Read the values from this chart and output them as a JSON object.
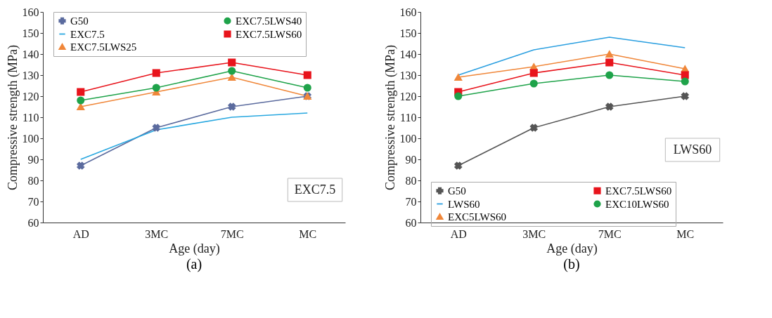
{
  "chart_data": [
    {
      "type": "line",
      "xlabel": "Age (day)",
      "ylabel": "Compressive strength (MPa)",
      "categories": [
        "AD",
        "3MC",
        "7MC",
        "MC"
      ],
      "ylim": [
        60,
        160
      ],
      "yticks": [
        60,
        70,
        80,
        90,
        100,
        110,
        120,
        130,
        140,
        150,
        160
      ],
      "grid": false,
      "legend": "top",
      "annotations": [
        "EXC7.5",
        "(a)"
      ],
      "series": [
        {
          "name": "G50",
          "color": "#5b6b9e",
          "marker": "cross",
          "values": [
            87,
            105,
            115,
            120
          ]
        },
        {
          "name": "EXC7.5",
          "color": "#29a8e0",
          "marker": "none",
          "values": [
            90,
            104,
            110,
            112
          ]
        },
        {
          "name": "EXC7.5LWS25",
          "color": "#f0873a",
          "marker": "triangle",
          "values": [
            115,
            122,
            129,
            120
          ]
        },
        {
          "name": "EXC7.5LWS40",
          "color": "#1fa34a",
          "marker": "circle",
          "values": [
            118,
            124,
            132,
            124
          ]
        },
        {
          "name": "EXC7.5LWS60",
          "color": "#e8141c",
          "marker": "square",
          "values": [
            122,
            131,
            136,
            130
          ]
        }
      ]
    },
    {
      "type": "line",
      "xlabel": "Age (day)",
      "ylabel": "Compressive strength (MPa)",
      "categories": [
        "AD",
        "3MC",
        "7MC",
        "MC"
      ],
      "ylim": [
        60,
        160
      ],
      "yticks": [
        60,
        70,
        80,
        90,
        100,
        110,
        120,
        130,
        140,
        150,
        160
      ],
      "grid": false,
      "legend": "bottom",
      "annotations": [
        "LWS60",
        "(b)"
      ],
      "series": [
        {
          "name": "G50",
          "color": "#555555",
          "marker": "cross",
          "values": [
            87,
            105,
            115,
            120
          ]
        },
        {
          "name": "LWS60",
          "color": "#2a9fe0",
          "marker": "none",
          "values": [
            130,
            142,
            148,
            143
          ]
        },
        {
          "name": "EXC5LWS60",
          "color": "#f0873a",
          "marker": "triangle",
          "values": [
            129,
            134,
            140,
            133
          ]
        },
        {
          "name": "EXC7.5LWS60",
          "color": "#e8141c",
          "marker": "square",
          "values": [
            122,
            131,
            136,
            130
          ]
        },
        {
          "name": "EXC10LWS60",
          "color": "#1fa34a",
          "marker": "circle",
          "values": [
            120,
            126,
            130,
            127
          ]
        }
      ]
    }
  ]
}
